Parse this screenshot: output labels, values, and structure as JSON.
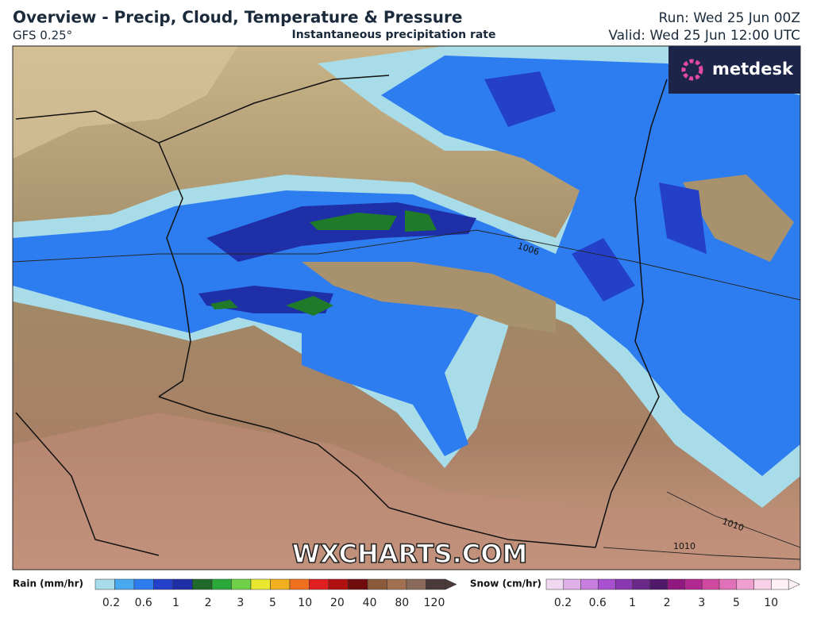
{
  "header": {
    "title": "Overview - Precip, Cloud, Temperature & Pressure",
    "model": "GFS 0.25°",
    "product": "Instantaneous precipitation rate",
    "run": "Run: Wed 25 Jun 00Z",
    "valid": "Valid: Wed 25 Jun 12:00 UTC"
  },
  "logo": "metdesk",
  "watermark": "WXCHARTS.COM",
  "isobar_labels": [
    "1006",
    "1010",
    "1010"
  ],
  "legend": {
    "rain": {
      "label": "Rain (mm/hr)",
      "ticks": [
        "0.2",
        "0.6",
        "1",
        "2",
        "3",
        "5",
        "10",
        "20",
        "40",
        "80",
        "120"
      ]
    },
    "snow": {
      "label": "Snow (cm/hr)",
      "ticks": [
        "0.2",
        "0.6",
        "1",
        "2",
        "3",
        "5",
        "10"
      ]
    }
  }
}
